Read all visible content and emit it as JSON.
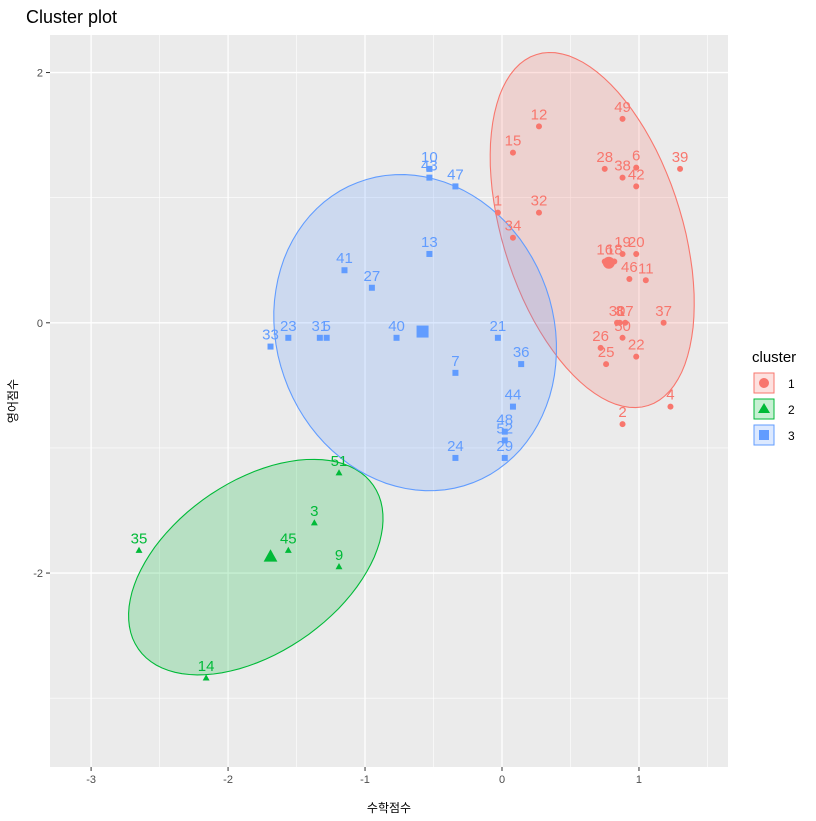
{
  "chart_data": {
    "type": "scatter",
    "title": "Cluster plot",
    "xlabel": "수학점수",
    "ylabel": "영어점수",
    "xlim": [
      -3.3,
      1.65
    ],
    "ylim": [
      -3.55,
      2.3
    ],
    "x_ticks": [
      -3,
      -2,
      -1,
      0,
      1
    ],
    "y_ticks": [
      -2,
      0,
      2
    ],
    "x_tick_labels": [
      "-3",
      "-2",
      "-1",
      "0",
      "1"
    ],
    "y_tick_labels": [
      "-2",
      "0",
      "2"
    ],
    "grid": true,
    "legend": {
      "title": "cluster",
      "position": "right",
      "entries": [
        "1",
        "2",
        "3"
      ]
    },
    "series": [
      {
        "name": "1",
        "color": "#F8766D",
        "shape": "circle",
        "points": [
          {
            "label": "1",
            "x": -0.03,
            "y": 0.88
          },
          {
            "label": "2",
            "x": 0.88,
            "y": -0.81
          },
          {
            "label": "4",
            "x": 1.23,
            "y": -0.67
          },
          {
            "label": "6",
            "x": 0.98,
            "y": 1.24
          },
          {
            "label": "8",
            "x": 0.86,
            "y": 0.0
          },
          {
            "label": "11",
            "x": 1.05,
            "y": 0.34
          },
          {
            "label": "12",
            "x": 0.27,
            "y": 1.57
          },
          {
            "label": "15",
            "x": 0.08,
            "y": 1.36
          },
          {
            "label": "16",
            "x": 0.75,
            "y": 0.49
          },
          {
            "label": "17",
            "x": 0.9,
            "y": 0.0
          },
          {
            "label": "18",
            "x": 0.82,
            "y": 0.49
          },
          {
            "label": "19",
            "x": 0.88,
            "y": 0.55
          },
          {
            "label": "20",
            "x": 0.98,
            "y": 0.55
          },
          {
            "label": "22",
            "x": 0.98,
            "y": -0.27
          },
          {
            "label": "25",
            "x": 0.76,
            "y": -0.33
          },
          {
            "label": "26",
            "x": 0.72,
            "y": -0.2
          },
          {
            "label": "28",
            "x": 0.75,
            "y": 1.23
          },
          {
            "label": "30",
            "x": 0.84,
            "y": 0.0
          },
          {
            "label": "32",
            "x": 0.27,
            "y": 0.88
          },
          {
            "label": "34",
            "x": 0.08,
            "y": 0.68
          },
          {
            "label": "37",
            "x": 1.18,
            "y": 0.0
          },
          {
            "label": "38",
            "x": 0.88,
            "y": 1.16
          },
          {
            "label": "39",
            "x": 1.3,
            "y": 1.23
          },
          {
            "label": "42",
            "x": 0.98,
            "y": 1.09
          },
          {
            "label": "46",
            "x": 0.93,
            "y": 0.35
          },
          {
            "label": "49",
            "x": 0.88,
            "y": 1.63
          },
          {
            "label": "50",
            "x": 0.88,
            "y": -0.12
          }
        ],
        "center": {
          "x": 0.78,
          "y": 0.48
        }
      },
      {
        "name": "2",
        "color": "#00BA38",
        "shape": "triangle",
        "points": [
          {
            "label": "3",
            "x": -1.37,
            "y": -1.6
          },
          {
            "label": "9",
            "x": -1.19,
            "y": -1.95
          },
          {
            "label": "14",
            "x": -2.16,
            "y": -2.84
          },
          {
            "label": "35",
            "x": -2.65,
            "y": -1.82
          },
          {
            "label": "45",
            "x": -1.56,
            "y": -1.82
          },
          {
            "label": "51",
            "x": -1.19,
            "y": -1.2
          }
        ],
        "center": {
          "x": -1.69,
          "y": -1.87
        }
      },
      {
        "name": "3",
        "color": "#619CFF",
        "shape": "square",
        "points": [
          {
            "label": "5",
            "x": -1.28,
            "y": -0.12
          },
          {
            "label": "7",
            "x": -0.34,
            "y": -0.4
          },
          {
            "label": "10",
            "x": -0.53,
            "y": 1.23
          },
          {
            "label": "13",
            "x": -0.53,
            "y": 0.55
          },
          {
            "label": "21",
            "x": -0.03,
            "y": -0.12
          },
          {
            "label": "23",
            "x": -1.56,
            "y": -0.12
          },
          {
            "label": "24",
            "x": -0.34,
            "y": -1.08
          },
          {
            "label": "27",
            "x": -0.95,
            "y": 0.28
          },
          {
            "label": "29",
            "x": 0.02,
            "y": -1.08
          },
          {
            "label": "31",
            "x": -1.33,
            "y": -0.12
          },
          {
            "label": "33",
            "x": -1.69,
            "y": -0.19
          },
          {
            "label": "36",
            "x": 0.14,
            "y": -0.33
          },
          {
            "label": "40",
            "x": -0.77,
            "y": -0.12
          },
          {
            "label": "41",
            "x": -1.15,
            "y": 0.42
          },
          {
            "label": "43",
            "x": -0.53,
            "y": 1.16
          },
          {
            "label": "44",
            "x": 0.08,
            "y": -0.67
          },
          {
            "label": "47",
            "x": -0.34,
            "y": 1.09
          },
          {
            "label": "48",
            "x": 0.02,
            "y": -0.87
          },
          {
            "label": "52",
            "x": 0.02,
            "y": -0.94
          }
        ],
        "center": {
          "x": -0.58,
          "y": -0.07
        }
      }
    ]
  }
}
